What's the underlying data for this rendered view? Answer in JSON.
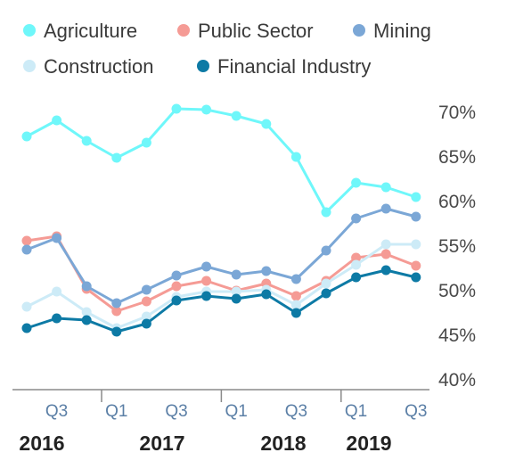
{
  "chart_data": {
    "type": "line",
    "x": [
      "Q2 2016",
      "Q3 2016",
      "Q4 2016",
      "Q1 2017",
      "Q2 2017",
      "Q3 2017",
      "Q4 2017",
      "Q1 2018",
      "Q2 2018",
      "Q3 2018",
      "Q4 2018",
      "Q1 2019",
      "Q2 2019",
      "Q3 2019"
    ],
    "x_tick_labels": [
      "Q3",
      "Q1",
      "Q3",
      "Q1",
      "Q3",
      "Q1",
      "Q3"
    ],
    "x_year_labels": [
      "2016",
      "2017",
      "2018",
      "2019"
    ],
    "y_tick_labels": [
      "40%",
      "45%",
      "50%",
      "55%",
      "60%",
      "65%",
      "70%"
    ],
    "ylim": [
      40,
      72
    ],
    "y_unit": "%",
    "grid": false,
    "legend_position": "top",
    "series": [
      {
        "name": "Agriculture",
        "color": "#6ff7fa",
        "values": [
          67.3,
          69.1,
          66.8,
          64.9,
          66.6,
          70.4,
          70.3,
          69.6,
          68.7,
          65.0,
          58.8,
          62.1,
          61.6,
          60.5
        ]
      },
      {
        "name": "Public Sector",
        "color": "#f59b95",
        "values": [
          55.6,
          56.1,
          50.2,
          47.7,
          48.8,
          50.5,
          51.1,
          50.0,
          50.8,
          49.4,
          51.1,
          53.7,
          54.1,
          52.8
        ]
      },
      {
        "name": "Mining",
        "color": "#7ba7d6",
        "values": [
          54.6,
          55.9,
          50.5,
          48.6,
          50.1,
          51.7,
          52.7,
          51.8,
          52.2,
          51.3,
          54.5,
          58.1,
          59.2,
          58.3
        ]
      },
      {
        "name": "Construction",
        "color": "#cdebf7",
        "values": [
          48.2,
          49.9,
          47.6,
          45.8,
          47.1,
          49.3,
          49.9,
          49.9,
          50.1,
          48.4,
          50.8,
          52.9,
          55.2,
          55.2
        ]
      },
      {
        "name": "Financial Industry",
        "color": "#0d7aa5",
        "values": [
          45.8,
          46.9,
          46.7,
          45.4,
          46.3,
          48.9,
          49.4,
          49.1,
          49.6,
          47.5,
          49.7,
          51.5,
          52.3,
          51.5
        ]
      }
    ]
  }
}
